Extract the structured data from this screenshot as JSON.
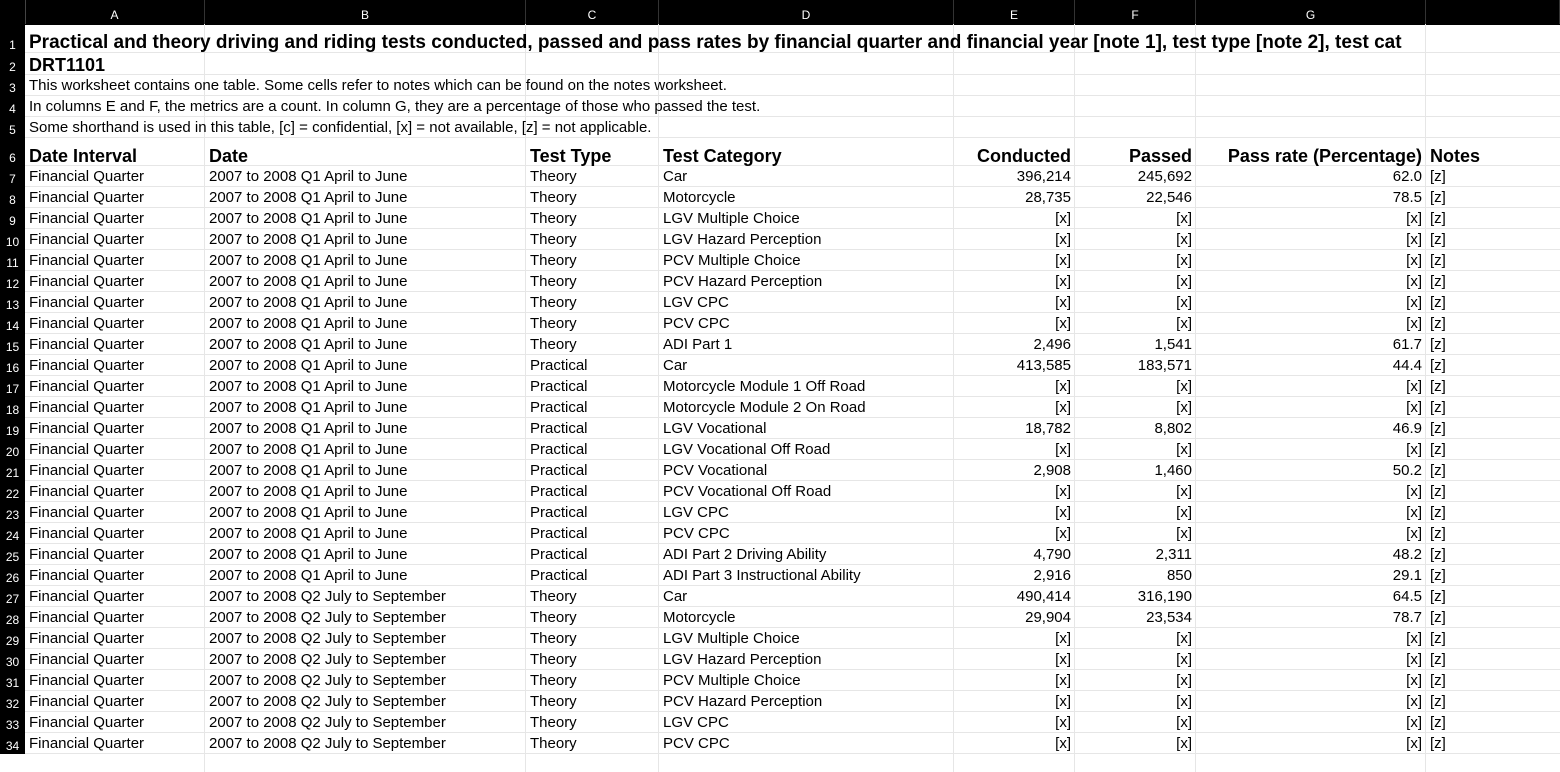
{
  "columns": [
    "A",
    "B",
    "C",
    "D",
    "E",
    "F",
    "G"
  ],
  "title": "Practical and theory driving and riding tests conducted, passed and pass rates by financial quarter and financial year [note 1], test type [note 2], test cat",
  "table_code": "DRT1101",
  "notes_lines": [
    "This worksheet contains one table. Some cells refer to notes which can be found on the notes worksheet.",
    "In columns E and F, the metrics are a count. In column G, they are a percentage of those who passed the test.",
    "Some shorthand is used in this table, [c] = confidential, [x] = not available, [z] = not applicable."
  ],
  "headers": [
    "Date Interval",
    "Date",
    "Test Type",
    "Test Category",
    "Conducted",
    "Passed",
    "Pass rate (Percentage)",
    "Notes"
  ],
  "rows": [
    [
      "7",
      "Financial Quarter",
      "2007 to 2008 Q1 April to June",
      "Theory",
      "Car",
      "396,214",
      "245,692",
      "62.0",
      "[z]"
    ],
    [
      "8",
      "Financial Quarter",
      "2007 to 2008 Q1 April to June",
      "Theory",
      "Motorcycle",
      "28,735",
      "22,546",
      "78.5",
      "[z]"
    ],
    [
      "9",
      "Financial Quarter",
      "2007 to 2008 Q1 April to June",
      "Theory",
      "LGV Multiple Choice",
      "[x]",
      "[x]",
      "[x]",
      "[z]"
    ],
    [
      "10",
      "Financial Quarter",
      "2007 to 2008 Q1 April to June",
      "Theory",
      "LGV Hazard Perception",
      "[x]",
      "[x]",
      "[x]",
      "[z]"
    ],
    [
      "11",
      "Financial Quarter",
      "2007 to 2008 Q1 April to June",
      "Theory",
      "PCV Multiple Choice",
      "[x]",
      "[x]",
      "[x]",
      "[z]"
    ],
    [
      "12",
      "Financial Quarter",
      "2007 to 2008 Q1 April to June",
      "Theory",
      "PCV Hazard Perception",
      "[x]",
      "[x]",
      "[x]",
      "[z]"
    ],
    [
      "13",
      "Financial Quarter",
      "2007 to 2008 Q1 April to June",
      "Theory",
      "LGV CPC",
      "[x]",
      "[x]",
      "[x]",
      "[z]"
    ],
    [
      "14",
      "Financial Quarter",
      "2007 to 2008 Q1 April to June",
      "Theory",
      "PCV CPC",
      "[x]",
      "[x]",
      "[x]",
      "[z]"
    ],
    [
      "15",
      "Financial Quarter",
      "2007 to 2008 Q1 April to June",
      "Theory",
      "ADI Part 1",
      "2,496",
      "1,541",
      "61.7",
      "[z]"
    ],
    [
      "16",
      "Financial Quarter",
      "2007 to 2008 Q1 April to June",
      "Practical",
      "Car",
      "413,585",
      "183,571",
      "44.4",
      "[z]"
    ],
    [
      "17",
      "Financial Quarter",
      "2007 to 2008 Q1 April to June",
      "Practical",
      "Motorcycle Module 1 Off Road",
      "[x]",
      "[x]",
      "[x]",
      "[z]"
    ],
    [
      "18",
      "Financial Quarter",
      "2007 to 2008 Q1 April to June",
      "Practical",
      "Motorcycle Module 2 On Road",
      "[x]",
      "[x]",
      "[x]",
      "[z]"
    ],
    [
      "19",
      "Financial Quarter",
      "2007 to 2008 Q1 April to June",
      "Practical",
      "LGV Vocational",
      "18,782",
      "8,802",
      "46.9",
      "[z]"
    ],
    [
      "20",
      "Financial Quarter",
      "2007 to 2008 Q1 April to June",
      "Practical",
      "LGV Vocational Off Road",
      "[x]",
      "[x]",
      "[x]",
      "[z]"
    ],
    [
      "21",
      "Financial Quarter",
      "2007 to 2008 Q1 April to June",
      "Practical",
      "PCV Vocational",
      "2,908",
      "1,460",
      "50.2",
      "[z]"
    ],
    [
      "22",
      "Financial Quarter",
      "2007 to 2008 Q1 April to June",
      "Practical",
      "PCV Vocational Off Road",
      "[x]",
      "[x]",
      "[x]",
      "[z]"
    ],
    [
      "23",
      "Financial Quarter",
      "2007 to 2008 Q1 April to June",
      "Practical",
      "LGV CPC",
      "[x]",
      "[x]",
      "[x]",
      "[z]"
    ],
    [
      "24",
      "Financial Quarter",
      "2007 to 2008 Q1 April to June",
      "Practical",
      "PCV CPC",
      "[x]",
      "[x]",
      "[x]",
      "[z]"
    ],
    [
      "25",
      "Financial Quarter",
      "2007 to 2008 Q1 April to June",
      "Practical",
      "ADI Part 2 Driving Ability",
      "4,790",
      "2,311",
      "48.2",
      "[z]"
    ],
    [
      "26",
      "Financial Quarter",
      "2007 to 2008 Q1 April to June",
      "Practical",
      "ADI Part 3 Instructional Ability",
      "2,916",
      "850",
      "29.1",
      "[z]"
    ],
    [
      "27",
      "Financial Quarter",
      "2007 to 2008 Q2 July to September",
      "Theory",
      "Car",
      "490,414",
      "316,190",
      "64.5",
      "[z]"
    ],
    [
      "28",
      "Financial Quarter",
      "2007 to 2008 Q2 July to September",
      "Theory",
      "Motorcycle",
      "29,904",
      "23,534",
      "78.7",
      "[z]"
    ],
    [
      "29",
      "Financial Quarter",
      "2007 to 2008 Q2 July to September",
      "Theory",
      "LGV Multiple Choice",
      "[x]",
      "[x]",
      "[x]",
      "[z]"
    ],
    [
      "30",
      "Financial Quarter",
      "2007 to 2008 Q2 July to September",
      "Theory",
      "LGV Hazard Perception",
      "[x]",
      "[x]",
      "[x]",
      "[z]"
    ],
    [
      "31",
      "Financial Quarter",
      "2007 to 2008 Q2 July to September",
      "Theory",
      "PCV Multiple Choice",
      "[x]",
      "[x]",
      "[x]",
      "[z]"
    ],
    [
      "32",
      "Financial Quarter",
      "2007 to 2008 Q2 July to September",
      "Theory",
      "PCV Hazard Perception",
      "[x]",
      "[x]",
      "[x]",
      "[z]"
    ],
    [
      "33",
      "Financial Quarter",
      "2007 to 2008 Q2 July to September",
      "Theory",
      "LGV CPC",
      "[x]",
      "[x]",
      "[x]",
      "[z]"
    ],
    [
      "34",
      "Financial Quarter",
      "2007 to 2008 Q2 July to September",
      "Theory",
      "PCV CPC",
      "[x]",
      "[x]",
      "[x]",
      "[z]"
    ]
  ]
}
